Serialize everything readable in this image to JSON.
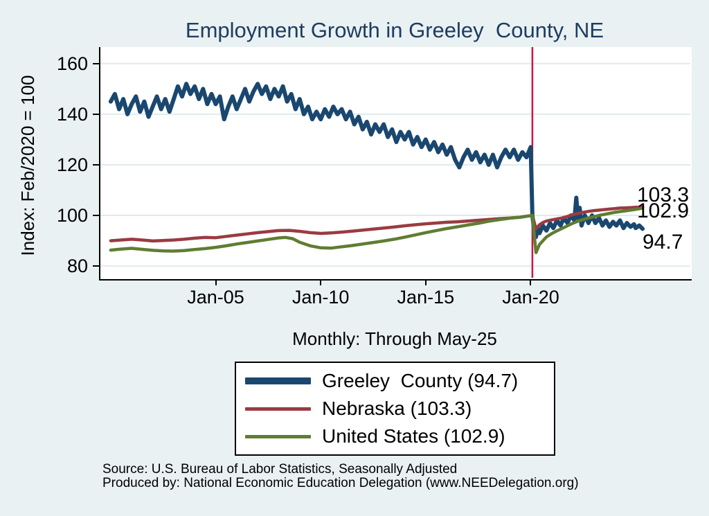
{
  "title": "Employment Growth in Greeley  County, NE",
  "y_axis": {
    "title": "Index: Feb/2020 = 100"
  },
  "x_axis_note": "Monthly: Through May-25",
  "end_labels": [
    {
      "series": "Nebraska",
      "text": "103.3"
    },
    {
      "series": "United States",
      "text": "102.9"
    },
    {
      "series": "Greeley County",
      "text": "94.7"
    }
  ],
  "legend": {
    "items": [
      {
        "label": "Greeley  County (94.7)",
        "color": "#1a476f",
        "thickness": 10
      },
      {
        "label": "Nebraska (103.3)",
        "color": "#9a3b42",
        "thickness": 5
      },
      {
        "label": "United States (102.9)",
        "color": "#5f7d32",
        "thickness": 5
      }
    ]
  },
  "source": {
    "line1": "Source: U.S. Bureau of Labor Statistics, Seasonally Adjusted",
    "line2": "Produced by: National Economic Education Delegation (www.NEEDelegation.org)"
  },
  "colors": {
    "background": "#e9f1f2",
    "plot_background": "#ffffff",
    "gridline": "#dfebee",
    "axis": "#000000",
    "title": "#1e3c60",
    "event_line": "#d01245",
    "greeley": "#1a476f",
    "nebraska": "#9a3b42",
    "united_states": "#5f7d32"
  },
  "chart_data": {
    "type": "line",
    "title": "Employment Growth in Greeley  County, NE",
    "subtitle": "Monthly: Through May-25",
    "ylabel": "Index: Feb/2020 = 100",
    "grid": true,
    "legend_position": "bottom",
    "x_range": [
      1999.51,
      2027.6
    ],
    "y_range": [
      75.37,
      166.53
    ],
    "y_ticks": [
      {
        "value": 80,
        "label": "80"
      },
      {
        "value": 100,
        "label": "100"
      },
      {
        "value": 120,
        "label": "120"
      },
      {
        "value": 140,
        "label": "140"
      },
      {
        "value": 160,
        "label": "160"
      }
    ],
    "x_ticks": [
      {
        "year": 2005,
        "label": "Jan-05"
      },
      {
        "year": 2010,
        "label": "Jan-10"
      },
      {
        "year": 2015,
        "label": "Jan-15"
      },
      {
        "year": 2020,
        "label": "Jan-20"
      }
    ],
    "event_line": {
      "year": 2020.08,
      "label": "Feb-2020",
      "color": "#d01245",
      "width": 2.5
    },
    "series": [
      {
        "name": "Greeley County",
        "final_value": 94.7,
        "color": "#1a476f",
        "width": 6,
        "points": [
          [
            2000.0,
            145
          ],
          [
            2000.2,
            148
          ],
          [
            2000.4,
            142
          ],
          [
            2000.6,
            146
          ],
          [
            2000.8,
            140
          ],
          [
            2001.0,
            144
          ],
          [
            2001.2,
            147
          ],
          [
            2001.4,
            141
          ],
          [
            2001.6,
            145
          ],
          [
            2001.8,
            139
          ],
          [
            2002.0,
            143
          ],
          [
            2002.2,
            147
          ],
          [
            2002.4,
            142
          ],
          [
            2002.6,
            146
          ],
          [
            2002.8,
            141
          ],
          [
            2003.0,
            146
          ],
          [
            2003.2,
            151
          ],
          [
            2003.4,
            147
          ],
          [
            2003.6,
            152
          ],
          [
            2003.8,
            148
          ],
          [
            2004.0,
            151
          ],
          [
            2004.2,
            146
          ],
          [
            2004.4,
            150
          ],
          [
            2004.6,
            144
          ],
          [
            2004.8,
            148
          ],
          [
            2005.0,
            144
          ],
          [
            2005.2,
            147
          ],
          [
            2005.4,
            138
          ],
          [
            2005.6,
            143
          ],
          [
            2005.8,
            147
          ],
          [
            2006.0,
            142
          ],
          [
            2006.2,
            146
          ],
          [
            2006.4,
            150
          ],
          [
            2006.6,
            145
          ],
          [
            2006.8,
            149
          ],
          [
            2007.0,
            152
          ],
          [
            2007.2,
            148
          ],
          [
            2007.4,
            151
          ],
          [
            2007.6,
            146
          ],
          [
            2007.8,
            150
          ],
          [
            2008.0,
            147
          ],
          [
            2008.2,
            151
          ],
          [
            2008.4,
            145
          ],
          [
            2008.6,
            148
          ],
          [
            2008.8,
            142
          ],
          [
            2009.0,
            146
          ],
          [
            2009.2,
            140
          ],
          [
            2009.4,
            143
          ],
          [
            2009.6,
            138
          ],
          [
            2009.8,
            141
          ],
          [
            2010.0,
            138
          ],
          [
            2010.2,
            142
          ],
          [
            2010.4,
            139
          ],
          [
            2010.6,
            143
          ],
          [
            2010.8,
            140
          ],
          [
            2011.0,
            142
          ],
          [
            2011.2,
            138
          ],
          [
            2011.4,
            141
          ],
          [
            2011.6,
            136
          ],
          [
            2011.8,
            139
          ],
          [
            2012.0,
            134
          ],
          [
            2012.2,
            137
          ],
          [
            2012.4,
            132
          ],
          [
            2012.6,
            136
          ],
          [
            2012.8,
            133
          ],
          [
            2013.0,
            136
          ],
          [
            2013.2,
            131
          ],
          [
            2013.4,
            134
          ],
          [
            2013.6,
            129
          ],
          [
            2013.8,
            133
          ],
          [
            2014.0,
            130
          ],
          [
            2014.2,
            133
          ],
          [
            2014.4,
            128
          ],
          [
            2014.6,
            131
          ],
          [
            2014.8,
            127
          ],
          [
            2015.0,
            130
          ],
          [
            2015.2,
            126
          ],
          [
            2015.4,
            129
          ],
          [
            2015.6,
            125
          ],
          [
            2015.8,
            128
          ],
          [
            2016.0,
            124
          ],
          [
            2016.2,
            127
          ],
          [
            2016.4,
            122
          ],
          [
            2016.6,
            119
          ],
          [
            2016.8,
            123
          ],
          [
            2017.0,
            126
          ],
          [
            2017.2,
            122
          ],
          [
            2017.4,
            125
          ],
          [
            2017.6,
            121
          ],
          [
            2017.8,
            124
          ],
          [
            2018.0,
            120
          ],
          [
            2018.2,
            124
          ],
          [
            2018.4,
            119
          ],
          [
            2018.6,
            123
          ],
          [
            2018.8,
            126
          ],
          [
            2019.0,
            123
          ],
          [
            2019.2,
            126
          ],
          [
            2019.4,
            122
          ],
          [
            2019.6,
            125
          ],
          [
            2019.8,
            123
          ],
          [
            2020.0,
            127
          ],
          [
            2020.08,
            100
          ],
          [
            2020.17,
            94
          ],
          [
            2020.25,
            91.5
          ],
          [
            2020.33,
            95
          ],
          [
            2020.42,
            93
          ],
          [
            2020.58,
            96
          ],
          [
            2020.75,
            94
          ],
          [
            2020.92,
            97
          ],
          [
            2021.08,
            95
          ],
          [
            2021.25,
            98
          ],
          [
            2021.42,
            96
          ],
          [
            2021.58,
            99
          ],
          [
            2021.75,
            97
          ],
          [
            2021.92,
            100
          ],
          [
            2022.08,
            98
          ],
          [
            2022.17,
            107
          ],
          [
            2022.25,
            99
          ],
          [
            2022.33,
            103
          ],
          [
            2022.42,
            96
          ],
          [
            2022.58,
            100
          ],
          [
            2022.75,
            97
          ],
          [
            2022.92,
            100
          ],
          [
            2023.08,
            97
          ],
          [
            2023.25,
            99
          ],
          [
            2023.42,
            96
          ],
          [
            2023.58,
            98
          ],
          [
            2023.75,
            95.5
          ],
          [
            2023.92,
            97.5
          ],
          [
            2024.08,
            96
          ],
          [
            2024.25,
            98
          ],
          [
            2024.42,
            95
          ],
          [
            2024.58,
            97
          ],
          [
            2024.75,
            95.5
          ],
          [
            2024.92,
            96.5
          ],
          [
            2025.0,
            95
          ],
          [
            2025.17,
            96
          ],
          [
            2025.33,
            94.7
          ]
        ]
      },
      {
        "name": "Nebraska",
        "final_value": 103.3,
        "color": "#9a3b42",
        "width": 4.5,
        "points": [
          [
            2000,
            90
          ],
          [
            2000.5,
            90.3
          ],
          [
            2001,
            90.6
          ],
          [
            2001.5,
            90.3
          ],
          [
            2002,
            89.9
          ],
          [
            2002.5,
            90.1
          ],
          [
            2003,
            90.3
          ],
          [
            2003.5,
            90.6
          ],
          [
            2004,
            91
          ],
          [
            2004.5,
            91.3
          ],
          [
            2005,
            91.2
          ],
          [
            2005.5,
            91.7
          ],
          [
            2006,
            92.2
          ],
          [
            2006.5,
            92.7
          ],
          [
            2007,
            93.2
          ],
          [
            2007.5,
            93.6
          ],
          [
            2008,
            94
          ],
          [
            2008.5,
            94.1
          ],
          [
            2009,
            93.7
          ],
          [
            2009.5,
            93.2
          ],
          [
            2010,
            92.9
          ],
          [
            2010.5,
            93.1
          ],
          [
            2011,
            93.4
          ],
          [
            2011.5,
            93.8
          ],
          [
            2012,
            94.2
          ],
          [
            2012.5,
            94.6
          ],
          [
            2013,
            95
          ],
          [
            2013.5,
            95.4
          ],
          [
            2014,
            95.9
          ],
          [
            2014.5,
            96.3
          ],
          [
            2015,
            96.7
          ],
          [
            2015.5,
            97
          ],
          [
            2016,
            97.3
          ],
          [
            2016.5,
            97.5
          ],
          [
            2017,
            97.8
          ],
          [
            2017.5,
            98.1
          ],
          [
            2018,
            98.4
          ],
          [
            2018.5,
            98.7
          ],
          [
            2019,
            99
          ],
          [
            2019.5,
            99.3
          ],
          [
            2019.83,
            99.7
          ],
          [
            2020.08,
            100
          ],
          [
            2020.25,
            94.7
          ],
          [
            2020.42,
            96.3
          ],
          [
            2020.58,
            97.2
          ],
          [
            2020.75,
            97.8
          ],
          [
            2021,
            98.2
          ],
          [
            2021.25,
            98.6
          ],
          [
            2021.5,
            99
          ],
          [
            2021.75,
            99.6
          ],
          [
            2022,
            100.3
          ],
          [
            2022.25,
            100.8
          ],
          [
            2022.5,
            101.2
          ],
          [
            2022.75,
            101.6
          ],
          [
            2023,
            101.9
          ],
          [
            2023.25,
            102.1
          ],
          [
            2023.5,
            102.3
          ],
          [
            2023.75,
            102.5
          ],
          [
            2024,
            102.7
          ],
          [
            2024.25,
            102.9
          ],
          [
            2024.5,
            103
          ],
          [
            2024.75,
            103.1
          ],
          [
            2025,
            103.2
          ],
          [
            2025.33,
            103.3
          ]
        ]
      },
      {
        "name": "United States",
        "final_value": 102.9,
        "color": "#5f7d32",
        "width": 4.5,
        "points": [
          [
            2000,
            86.3
          ],
          [
            2000.5,
            86.7
          ],
          [
            2001,
            87
          ],
          [
            2001.5,
            86.6
          ],
          [
            2002,
            86.2
          ],
          [
            2002.5,
            86
          ],
          [
            2003,
            85.9
          ],
          [
            2003.5,
            86.1
          ],
          [
            2004,
            86.5
          ],
          [
            2004.5,
            86.9
          ],
          [
            2005,
            87.4
          ],
          [
            2005.5,
            88
          ],
          [
            2006,
            88.7
          ],
          [
            2006.5,
            89.3
          ],
          [
            2007,
            89.9
          ],
          [
            2007.5,
            90.5
          ],
          [
            2008,
            91.1
          ],
          [
            2008.33,
            91.3
          ],
          [
            2008.67,
            90.8
          ],
          [
            2009,
            89.4
          ],
          [
            2009.5,
            88
          ],
          [
            2010,
            87.2
          ],
          [
            2010.5,
            87.1
          ],
          [
            2011,
            87.6
          ],
          [
            2011.5,
            88.1
          ],
          [
            2012,
            88.7
          ],
          [
            2012.5,
            89.3
          ],
          [
            2013,
            89.9
          ],
          [
            2013.5,
            90.6
          ],
          [
            2014,
            91.4
          ],
          [
            2014.5,
            92.3
          ],
          [
            2015,
            93.2
          ],
          [
            2015.5,
            94
          ],
          [
            2016,
            94.8
          ],
          [
            2016.5,
            95.5
          ],
          [
            2017,
            96.2
          ],
          [
            2017.5,
            96.9
          ],
          [
            2018,
            97.7
          ],
          [
            2018.5,
            98.3
          ],
          [
            2019,
            98.9
          ],
          [
            2019.5,
            99.3
          ],
          [
            2019.83,
            99.7
          ],
          [
            2020.08,
            100
          ],
          [
            2020.25,
            85.3
          ],
          [
            2020.42,
            88.5
          ],
          [
            2020.58,
            90
          ],
          [
            2020.75,
            91.5
          ],
          [
            2021,
            92.8
          ],
          [
            2021.25,
            93.9
          ],
          [
            2021.5,
            94.9
          ],
          [
            2021.75,
            95.9
          ],
          [
            2022,
            96.9
          ],
          [
            2022.25,
            97.7
          ],
          [
            2022.5,
            98.4
          ],
          [
            2022.75,
            99
          ],
          [
            2023,
            99.5
          ],
          [
            2023.25,
            100
          ],
          [
            2023.5,
            100.4
          ],
          [
            2023.75,
            100.8
          ],
          [
            2024,
            101.2
          ],
          [
            2024.25,
            101.5
          ],
          [
            2024.5,
            101.8
          ],
          [
            2024.75,
            102.1
          ],
          [
            2025,
            102.4
          ],
          [
            2025.33,
            102.9
          ]
        ]
      }
    ]
  }
}
